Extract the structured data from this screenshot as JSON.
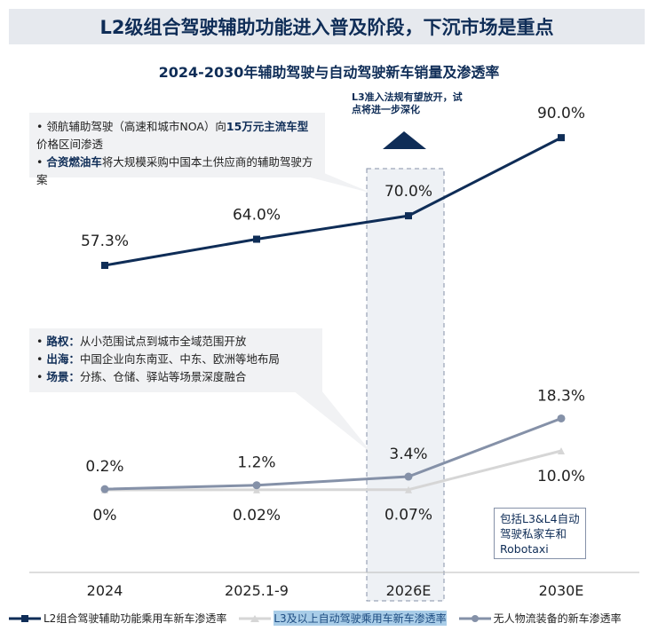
{
  "banner": "L2级组合驾驶辅助功能进入普及阶段，下沉市场是重点",
  "callout1": {
    "l1a": "领航辅助驾驶（高速和城市NOA）向",
    "l1b": "15万元主流车型",
    "l1c": "价格区间渗透",
    "l2a": "合资燃油车",
    "l2b": "将大规模采购中国本土供应商的辅助驾驶方案"
  },
  "callout2": {
    "r1k": "路权：",
    "r1v": "从小范围试点到城市全域范围开放",
    "r2k": "出海：",
    "r2v": "中国企业向东南亚、中东、欧洲等地布局",
    "r3k": "场景：",
    "r3v": "分拣、仓储、驿站等场景深度融合"
  },
  "note": "L3准入法规有望放开，试点将进一步深化",
  "rbox": "包括L3&L4自动驾驶私家车和Robotaxi",
  "chart_data": {
    "type": "line",
    "title": "2024-2030年辅助驾驶与自动驾驶新车销量及渗透率",
    "categories": [
      "2024",
      "2025.1-9",
      "2026E",
      "2030E"
    ],
    "highlight_category": "2026E",
    "series": [
      {
        "name": "L2组合驾驶辅助功能乘用车新车渗透率",
        "values": [
          57.3,
          64.0,
          70.0,
          90.0
        ],
        "labels": [
          "57.3%",
          "64.0%",
          "70.0%",
          "90.0%"
        ],
        "color": "#0f2d57"
      },
      {
        "name": "L3及以上自动驾驶乘用车新车渗透率",
        "values": [
          0,
          0.02,
          0.07,
          10.0
        ],
        "labels": [
          "0%",
          "0.02%",
          "0.07%",
          "10.0%"
        ],
        "color": "#d6d6d6"
      },
      {
        "name": "无人物流装备的新车渗透率",
        "values": [
          0.2,
          1.2,
          3.4,
          18.3
        ],
        "labels": [
          "0.2%",
          "1.2%",
          "3.4%",
          "18.3%"
        ],
        "color": "#8591a8"
      }
    ]
  }
}
